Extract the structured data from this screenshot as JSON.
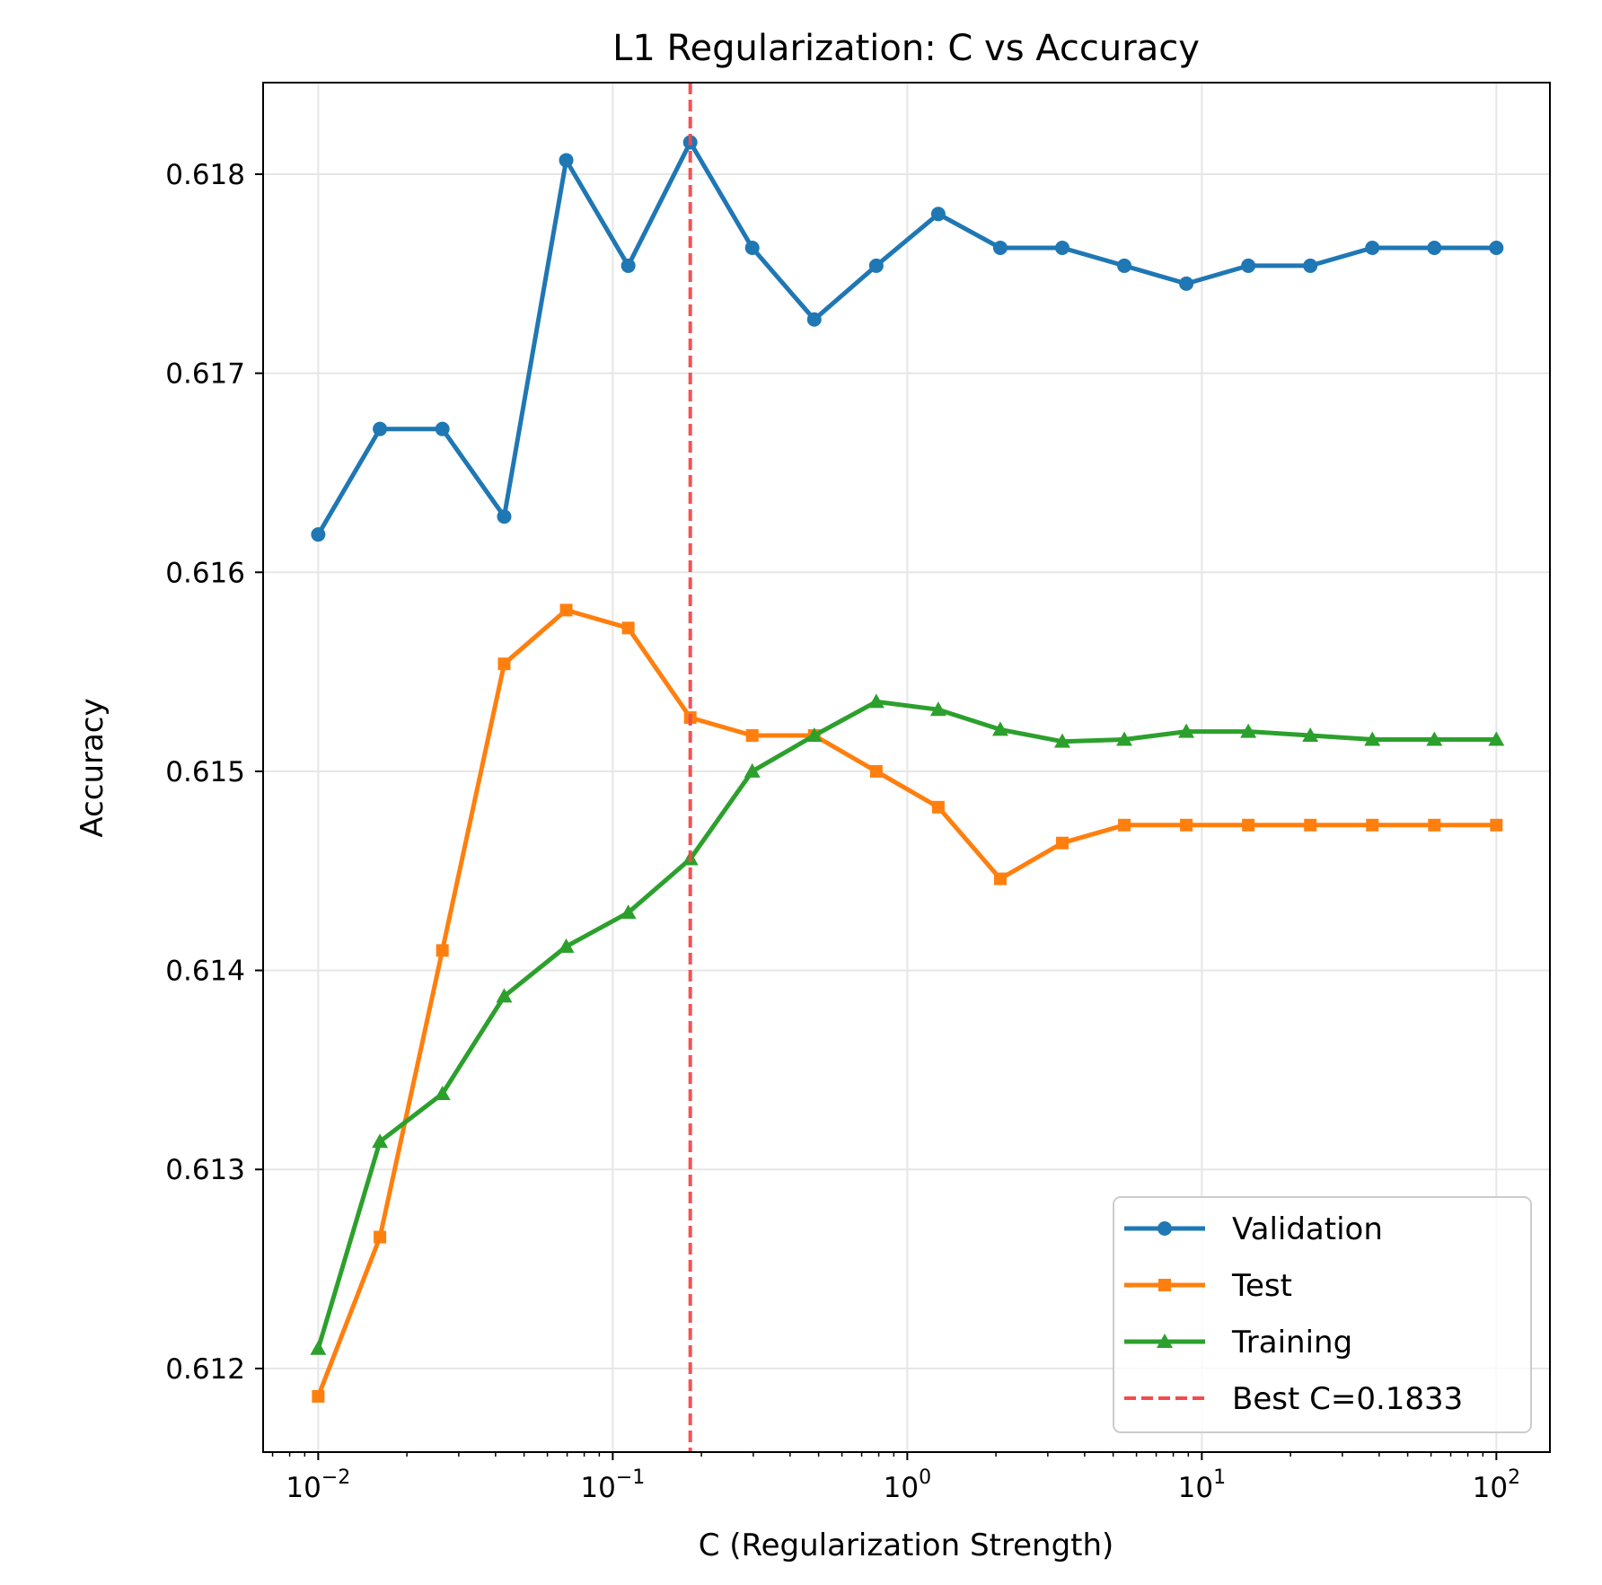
{
  "chart_data": {
    "type": "line",
    "title": "L1 Regularization: C vs Accuracy",
    "xlabel": "C (Regularization Strength)",
    "ylabel": "Accuracy",
    "xscale": "log",
    "xlim": [
      0.0065,
      152
    ],
    "ylim": [
      0.61158,
      0.61846
    ],
    "grid": true,
    "legend_position": "lower-right",
    "x_tick_labels": [
      {
        "base": "10",
        "exp": "−2",
        "value": 0.01
      },
      {
        "base": "10",
        "exp": "−1",
        "value": 0.1
      },
      {
        "base": "10",
        "exp": "0",
        "value": 1
      },
      {
        "base": "10",
        "exp": "1",
        "value": 10
      },
      {
        "base": "10",
        "exp": "2",
        "value": 100
      }
    ],
    "y_ticks": [
      {
        "label": "0.612",
        "value": 0.612
      },
      {
        "label": "0.613",
        "value": 0.613
      },
      {
        "label": "0.614",
        "value": 0.614
      },
      {
        "label": "0.615",
        "value": 0.615
      },
      {
        "label": "0.616",
        "value": 0.616
      },
      {
        "label": "0.617",
        "value": 0.617
      },
      {
        "label": "0.618",
        "value": 0.618
      }
    ],
    "x": [
      0.01,
      0.0162,
      0.0264,
      0.0428,
      0.0695,
      0.1129,
      0.1833,
      0.2976,
      0.4833,
      0.7848,
      1.2743,
      2.0691,
      3.3598,
      5.4556,
      8.8587,
      14.3845,
      23.3572,
      37.9269,
      61.5848,
      100
    ],
    "series": [
      {
        "name": "Validation",
        "color": "#1f77b4",
        "marker": "circle",
        "values": [
          0.61619,
          0.61672,
          0.61672,
          0.61628,
          0.61807,
          0.61754,
          0.61816,
          0.61763,
          0.61727,
          0.61754,
          0.6178,
          0.61763,
          0.61763,
          0.61754,
          0.61745,
          0.61754,
          0.61754,
          0.61763,
          0.61763,
          0.61763
        ]
      },
      {
        "name": "Test",
        "color": "#ff7f0e",
        "marker": "square",
        "values": [
          0.61186,
          0.61266,
          0.6141,
          0.61554,
          0.61581,
          0.61572,
          0.61527,
          0.61518,
          0.61518,
          0.615,
          0.61482,
          0.61446,
          0.61464,
          0.61473,
          0.61473,
          0.61473,
          0.61473,
          0.61473,
          0.61473,
          0.61473
        ]
      },
      {
        "name": "Training",
        "color": "#2ca02c",
        "marker": "triangle",
        "values": [
          0.6121,
          0.61314,
          0.61338,
          0.61387,
          0.61412,
          0.61429,
          0.61456,
          0.615,
          0.61518,
          0.61535,
          0.61531,
          0.61521,
          0.61515,
          0.61516,
          0.6152,
          0.6152,
          0.61518,
          0.61516,
          0.61516,
          0.61516
        ]
      }
    ],
    "reference_line": {
      "label": "Best C=0.1833",
      "x": 0.1833,
      "color": "#f44a4a",
      "style": "dashed"
    }
  }
}
